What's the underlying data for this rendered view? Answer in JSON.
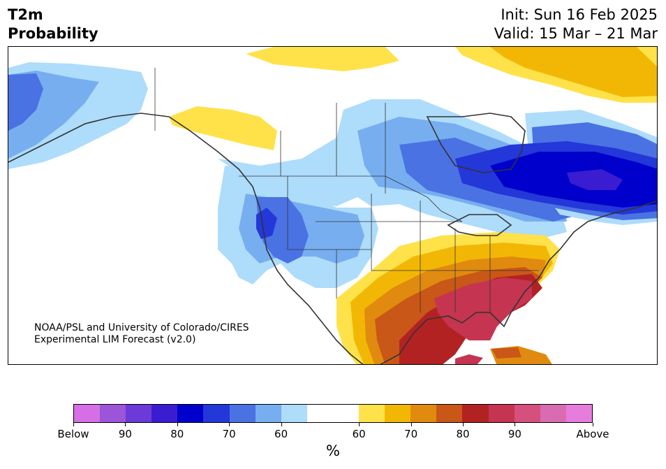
{
  "header": {
    "variable": "T2m",
    "product": "Probability",
    "init": "Init: Sun 16 Feb 2025",
    "valid": "Valid: 15 Mar – 21 Mar"
  },
  "credit": {
    "line1": "NOAA/PSL and University of Colorado/CIRES",
    "line2": "Experimental LIM Forecast (v2.0)"
  },
  "colorbar": {
    "colors": [
      "#d66fe6",
      "#9c55d9",
      "#6b3ad8",
      "#3a1cd1",
      "#0000cc",
      "#2437d9",
      "#4a72e3",
      "#77aef0",
      "#aedcfb",
      "#ffffff",
      "#ffffff",
      "#ffe24a",
      "#f2b705",
      "#e08b0f",
      "#c95718",
      "#b22222",
      "#c53450",
      "#d5507c",
      "#d96bb0",
      "#e67ddd"
    ],
    "tick_labels": [
      "Below",
      "90",
      "80",
      "70",
      "60",
      "60",
      "70",
      "80",
      "90",
      "Above"
    ],
    "unit_label": "%"
  },
  "map": {
    "region": "North America",
    "colors": {
      "blue_light": "#aedcfb",
      "blue_mid": "#77aef0",
      "blue_med": "#4a72e3",
      "blue_strong": "#2437d9",
      "blue_deep": "#0000cc",
      "indigo": "#3a1cd1",
      "yellow": "#ffe24a",
      "gold": "#f2b705",
      "orange": "#e08b0f",
      "rust": "#c95718",
      "red": "#b22222",
      "crimson": "#c53450",
      "border": "#333333"
    }
  }
}
